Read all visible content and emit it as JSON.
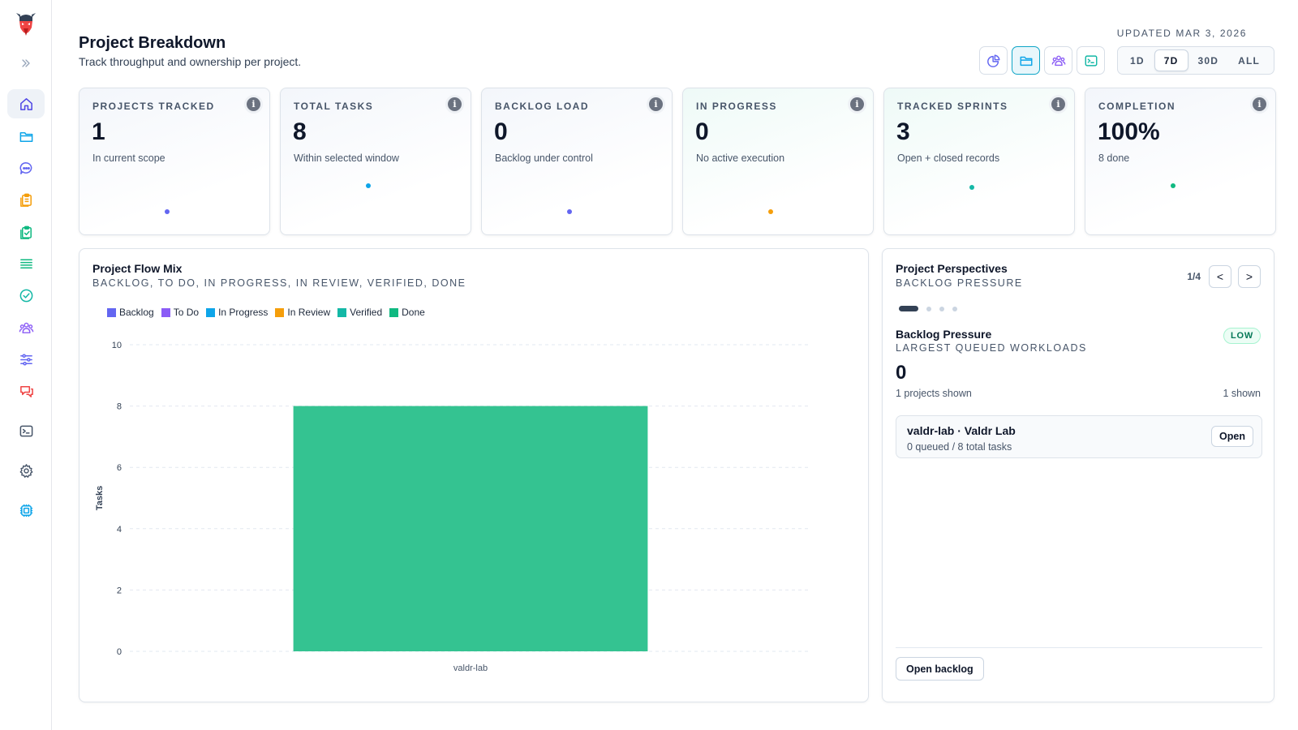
{
  "header": {
    "title": "Project Breakdown",
    "subtitle": "Track throughput and ownership per project.",
    "updated": "UPDATED MAR 3, 2026"
  },
  "sidebar": {
    "items": [
      {
        "name": "home-icon",
        "color": "#4f46e5",
        "active": true
      },
      {
        "name": "folder-icon",
        "color": "#0ea5e9"
      },
      {
        "name": "chat-icon",
        "color": "#6366f1"
      },
      {
        "name": "clipboard-icon",
        "color": "#f59e0b"
      },
      {
        "name": "clipboard-check-icon",
        "color": "#10b981"
      },
      {
        "name": "list-icon",
        "color": "#10b981"
      },
      {
        "name": "check-circle-icon",
        "color": "#14b8a6"
      },
      {
        "name": "team-icon",
        "color": "#8b5cf6"
      },
      {
        "name": "sliders-icon",
        "color": "#6366f1"
      },
      {
        "name": "feedback-icon",
        "color": "#ef4444"
      },
      {
        "name": "terminal-icon",
        "color": "#475569"
      },
      {
        "name": "gear-icon",
        "color": "#475569"
      },
      {
        "name": "chip-icon",
        "color": "#0ea5e9"
      }
    ]
  },
  "view_buttons": [
    {
      "name": "pie-chart-icon",
      "active": false
    },
    {
      "name": "folder-icon",
      "active": true
    },
    {
      "name": "team-icon",
      "active": false
    },
    {
      "name": "terminal-icon",
      "active": false
    }
  ],
  "ranges": [
    {
      "label": "1D",
      "active": false
    },
    {
      "label": "7D",
      "active": true
    },
    {
      "label": "30D",
      "active": false
    },
    {
      "label": "ALL",
      "active": false
    }
  ],
  "cards": [
    {
      "label": "PROJECTS TRACKED",
      "value": "1",
      "sub": "In current scope",
      "dot_color": "#6366f1"
    },
    {
      "label": "TOTAL TASKS",
      "value": "8",
      "sub": "Within selected window",
      "dot_color": "#0ea5e9"
    },
    {
      "label": "BACKLOG LOAD",
      "value": "0",
      "sub": "Backlog under control",
      "dot_color": "#6366f1"
    },
    {
      "label": "IN PROGRESS",
      "value": "0",
      "sub": "No active execution",
      "dot_color": "#f59e0b"
    },
    {
      "label": "TRACKED SPRINTS",
      "value": "3",
      "sub": "Open + closed records",
      "dot_color": "#14b8a6"
    },
    {
      "label": "COMPLETION",
      "value": "100%",
      "sub": "8 done",
      "dot_color": "#10b981"
    }
  ],
  "flow_panel": {
    "title": "Project Flow Mix",
    "subtitle": "BACKLOG, TO DO, IN PROGRESS, IN REVIEW, VERIFIED, DONE"
  },
  "chart_data": {
    "type": "bar",
    "stacked": true,
    "categories": [
      "valdr-lab"
    ],
    "series": [
      {
        "name": "Backlog",
        "color": "#6366f1",
        "values": [
          0
        ]
      },
      {
        "name": "To Do",
        "color": "#8b5cf6",
        "values": [
          0
        ]
      },
      {
        "name": "In Progress",
        "color": "#0ea5e9",
        "values": [
          0
        ]
      },
      {
        "name": "In Review",
        "color": "#f59e0b",
        "values": [
          0
        ]
      },
      {
        "name": "Verified",
        "color": "#14b8a6",
        "values": [
          0
        ]
      },
      {
        "name": "Done",
        "color": "#34c391",
        "values": [
          8
        ]
      }
    ],
    "ylabel": "Tasks",
    "ylim": [
      0,
      10
    ],
    "yticks": [
      0,
      2,
      4,
      6,
      8,
      10
    ],
    "grid": true,
    "legend": "top-left"
  },
  "perspectives": {
    "title": "Project Perspectives",
    "subtitle": "BACKLOG PRESSURE",
    "page": "1/4",
    "prev": "<",
    "next": ">",
    "pages": 4,
    "active_page": 0,
    "section_title": "Backlog Pressure",
    "section_sub": "LARGEST QUEUED WORKLOADS",
    "badge": "LOW",
    "big_value": "0",
    "shown_left": "1 projects shown",
    "shown_right": "1 shown",
    "project": {
      "name": "valdr-lab · Valdr Lab",
      "meta": "0 queued / 8 total tasks",
      "open_label": "Open"
    },
    "open_backlog": "Open backlog"
  }
}
